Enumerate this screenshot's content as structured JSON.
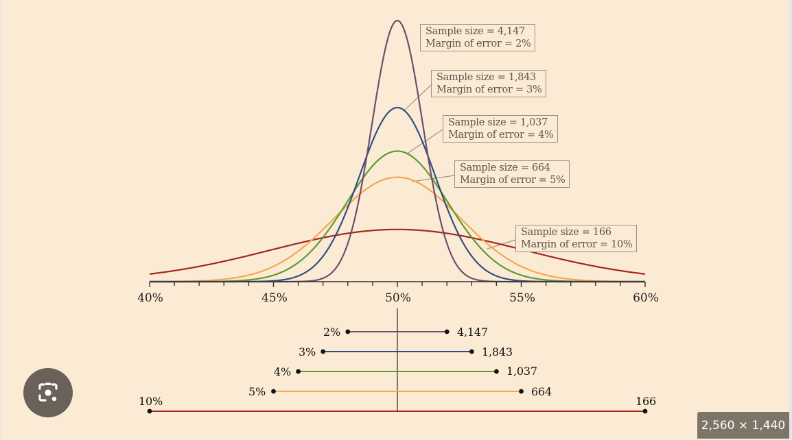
{
  "chart_data": {
    "type": "line",
    "title": "",
    "xlabel": "",
    "ylabel": "",
    "xlim": [
      40,
      60
    ],
    "x_ticks": [
      "40%",
      "45%",
      "50%",
      "55%",
      "60%"
    ],
    "minor_tick_step": 1,
    "center": 50,
    "grid": false,
    "series": [
      {
        "name": "Sample size = 4,147",
        "sample_size": "4,147",
        "margin_of_error": 2,
        "color": "#6e4e6e",
        "callout": [
          "Sample size = 4,147",
          "Margin of error = 2%"
        ],
        "bar_left_label": "2%",
        "bar_right_label": "4,147"
      },
      {
        "name": "Sample size = 1,843",
        "sample_size": "1,843",
        "margin_of_error": 3,
        "color": "#2f4f7f",
        "callout": [
          "Sample size = 1,843",
          "Margin of error = 3%"
        ],
        "bar_left_label": "3%",
        "bar_right_label": "1,843"
      },
      {
        "name": "Sample size = 1,037",
        "sample_size": "1,037",
        "margin_of_error": 4,
        "color": "#5e9a30",
        "callout": [
          "Sample size = 1,037",
          "Margin of error = 4%"
        ],
        "bar_left_label": "4%",
        "bar_right_label": "1,037"
      },
      {
        "name": "Sample size = 664",
        "sample_size": "664",
        "margin_of_error": 5,
        "color": "#f2a94e",
        "callout": [
          "Sample size = 664",
          "Margin of error = 5%"
        ],
        "bar_left_label": "5%",
        "bar_right_label": "664"
      },
      {
        "name": "Sample size = 166",
        "sample_size": "166",
        "margin_of_error": 10,
        "color": "#a32621",
        "callout": [
          "Sample size = 166",
          "Margin of error = 10%"
        ],
        "bar_left_label": "10%",
        "bar_right_label": "166"
      }
    ],
    "description": "Normal sampling distributions centred at 50% for different sample sizes, with corresponding ±margin-of-error intervals shown below."
  },
  "overlay": {
    "lens_button": "visual-search-lens",
    "dimensions_badge": "2,560 × 1,440"
  }
}
